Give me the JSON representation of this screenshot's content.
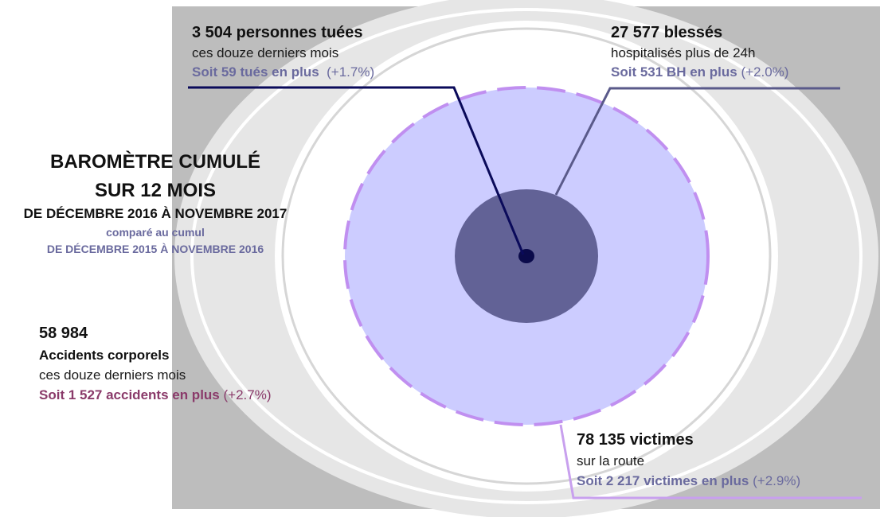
{
  "title": {
    "line1": "BAROMÈTRE CUMULÉ",
    "line2": "SUR 12 MOIS",
    "period": "DE DÉCEMBRE 2016 À NOVEMBRE 2017",
    "compared_label": "comparé au cumul",
    "compared_period": "DE DÉCEMBRE 2015 À NOVEMBRE 2016"
  },
  "killed": {
    "headline": "3 504 personnes tuées",
    "sub": "ces douze derniers mois",
    "delta": "Soit 59 tués en plus",
    "pct": "(+1.7%)",
    "color": "#0a0a5a"
  },
  "injured": {
    "headline": "27 577 blessés",
    "sub": "hospitalisés plus de 24h",
    "delta": "Soit 531 BH en plus",
    "pct": "(+2.0%)",
    "color": "#5a5a8a"
  },
  "accidents": {
    "number": "58 984",
    "headline": "Accidents corporels",
    "sub": "ces douze derniers mois",
    "delta": "Soit 1 527 accidents en plus",
    "pct": "(+2.7%)",
    "color": "#8a3a6a"
  },
  "victims": {
    "headline": "78 135 victimes",
    "sub": "sur la route",
    "delta": "Soit 2 217 victimes en plus",
    "pct": "(+2.9%)",
    "color": "#c8a0ee"
  },
  "colors": {
    "outer_band": "#bdbdbd",
    "ring_light": "#e6e6e6",
    "ring_mid": "#d6d6d6",
    "victims_fill": "#ccccff",
    "victims_border": "#c08ff0",
    "injured_core": "#626296",
    "killed_dot": "#0a0a4a"
  }
}
